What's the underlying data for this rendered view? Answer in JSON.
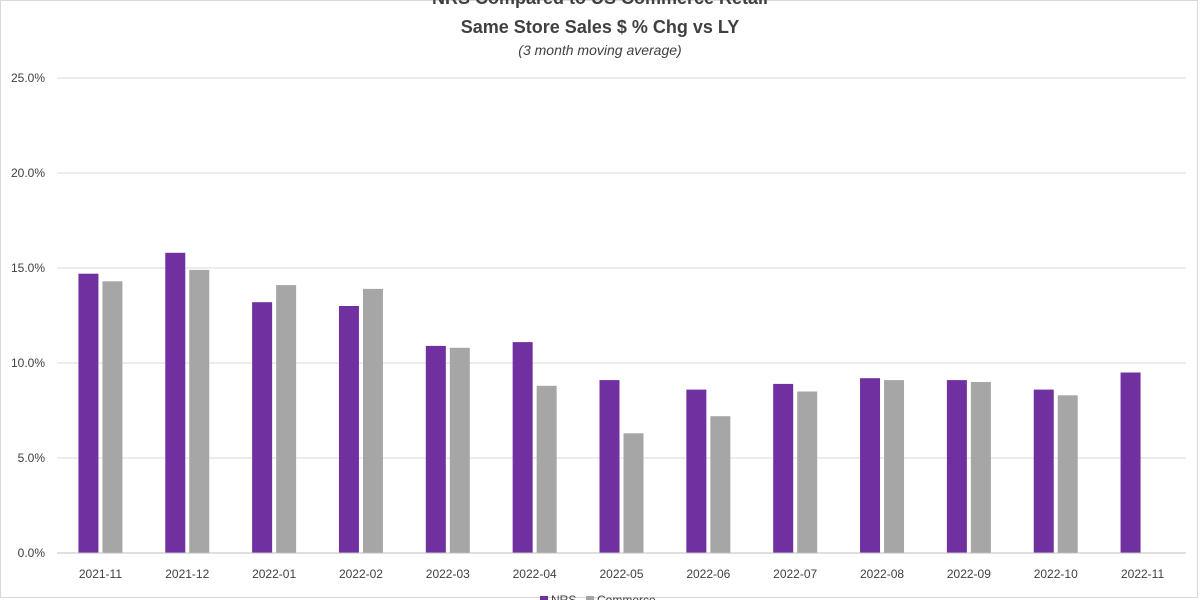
{
  "chart_data": {
    "type": "bar",
    "title": "NRS Compared to US Commerce Retail",
    "subtitle": "Same Store Sales $ % Chg vs LY",
    "note": "(3 month moving average)",
    "categories": [
      "2021-11",
      "2021-12",
      "2022-01",
      "2022-02",
      "2022-03",
      "2022-04",
      "2022-05",
      "2022-06",
      "2022-07",
      "2022-08",
      "2022-09",
      "2022-10",
      "2022-11"
    ],
    "series": [
      {
        "name": "NRS",
        "color": "#7030a0",
        "values": [
          14.7,
          15.8,
          13.2,
          13.0,
          10.9,
          11.1,
          9.1,
          8.6,
          8.9,
          9.2,
          9.1,
          8.6,
          9.5
        ]
      },
      {
        "name": "Commerce",
        "color": "#a6a6a6",
        "values": [
          14.3,
          14.9,
          14.1,
          13.9,
          10.8,
          8.8,
          6.3,
          7.2,
          8.5,
          9.1,
          9.0,
          8.3,
          null
        ]
      }
    ],
    "ylim": [
      0,
      25
    ],
    "yticks": [
      "0.0%",
      "5.0%",
      "10.0%",
      "15.0%",
      "20.0%",
      "25.0%"
    ],
    "xlabel": "",
    "ylabel": "",
    "grid": true,
    "legend_position": "bottom"
  }
}
